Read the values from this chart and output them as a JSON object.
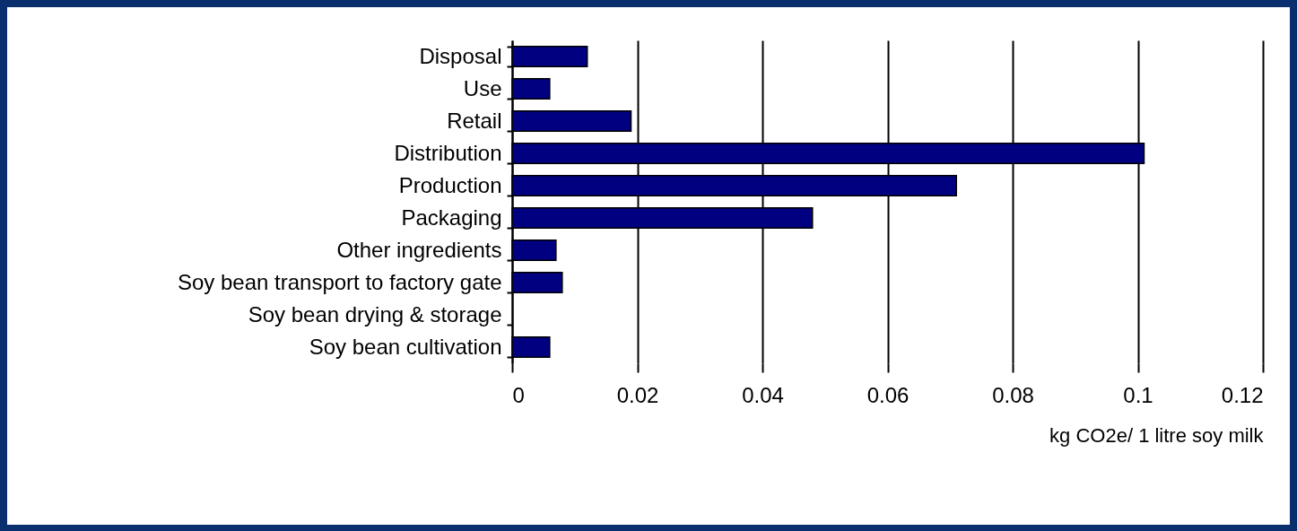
{
  "chart_data": {
    "type": "bar",
    "orientation": "horizontal",
    "categories": [
      "Disposal",
      "Use",
      "Retail",
      "Distribution",
      "Production",
      "Packaging",
      "Other ingredients",
      "Soy bean transport to factory gate",
      "Soy bean drying & storage",
      "Soy bean cultivation"
    ],
    "values": [
      0.012,
      0.006,
      0.019,
      0.101,
      0.071,
      0.048,
      0.007,
      0.008,
      null,
      0.006
    ],
    "color": "#000080",
    "xlabel": "kg CO2e/ 1 litre soy milk",
    "xlim": [
      0,
      0.12
    ],
    "xticks": [
      0,
      0.02,
      0.04,
      0.06,
      0.08,
      0.1,
      0.12
    ],
    "grid": "x"
  }
}
